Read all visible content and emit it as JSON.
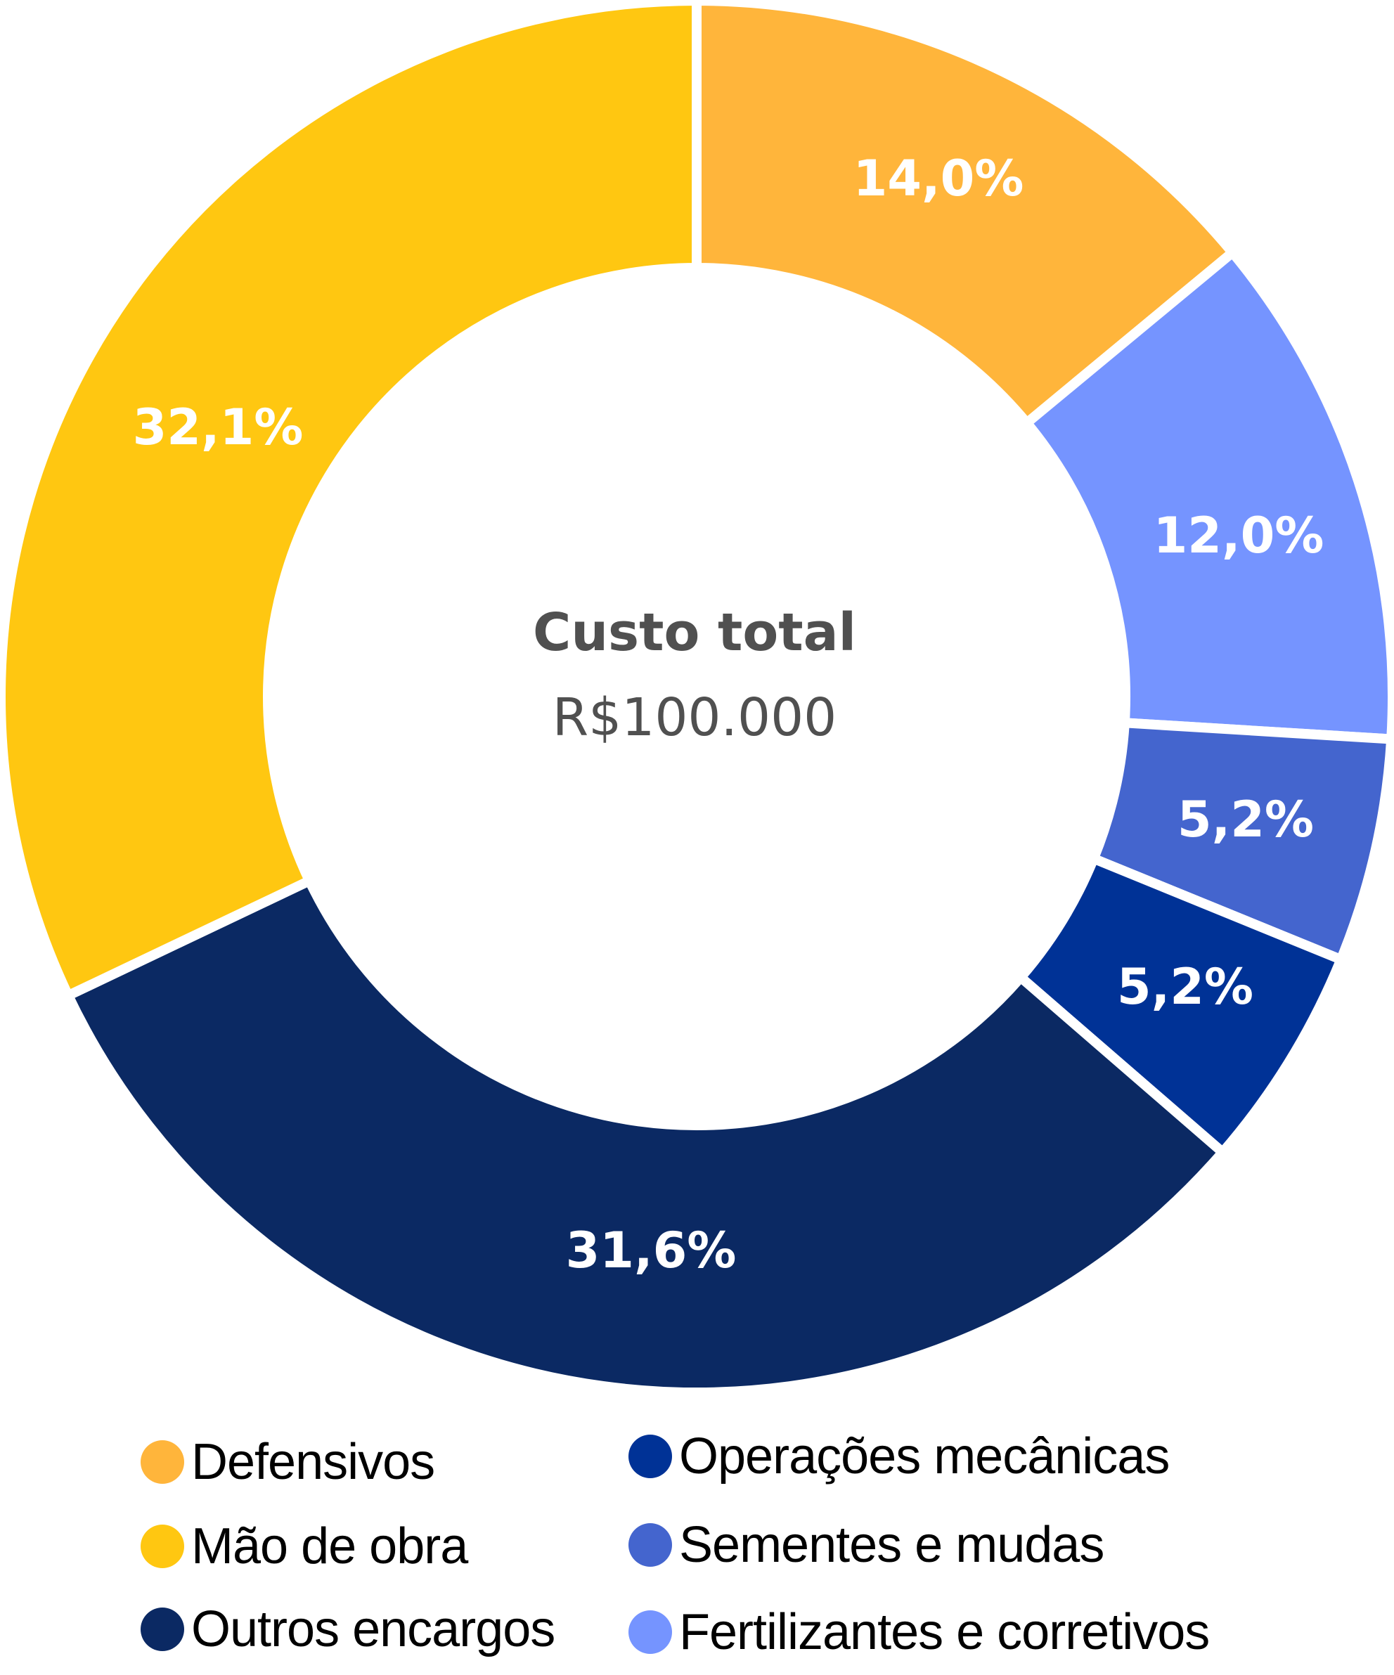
{
  "chart_data": {
    "type": "pie",
    "subtype": "donut",
    "title": "",
    "center_label": {
      "title": "Custo total",
      "value": "R$100.000"
    },
    "unit": "%",
    "categories": [
      "Defensivos",
      "Fertilizantes e corretivos",
      "Sementes e mudas",
      "Operações mecânicas",
      "Outros encargos",
      "Mão de obra"
    ],
    "values": [
      14.0,
      12.0,
      5.2,
      5.2,
      31.6,
      32.1
    ],
    "value_labels": [
      "14,0%",
      "12,0%",
      "5,2%",
      "5,2%",
      "31,6%",
      "32,1%"
    ],
    "colors": [
      "#FFB53B",
      "#7594FF",
      "#4465CE",
      "#003296",
      "#0B2963",
      "#FFC711"
    ],
    "start_angle_deg": 0,
    "direction": "clockwise",
    "legend_position": "bottom"
  },
  "center": {
    "title": "Custo total",
    "value": "R$100.000"
  },
  "slices": [
    {
      "label": "14,0%"
    },
    {
      "label": "12,0%"
    },
    {
      "label": "5,2%"
    },
    {
      "label": "5,2%"
    },
    {
      "label": "31,6%"
    },
    {
      "label": "32,1%"
    }
  ],
  "legend": {
    "items": [
      {
        "label": "Defensivos",
        "color": "#FFB53B"
      },
      {
        "label": "Mão de obra",
        "color": "#FFC711"
      },
      {
        "label": "Outros encargos",
        "color": "#0B2963"
      },
      {
        "label": "Operações mecânicas",
        "color": "#003296"
      },
      {
        "label": "Sementes e mudas",
        "color": "#4465CE"
      },
      {
        "label": "Fertilizantes e corretivos",
        "color": "#7594FF"
      }
    ]
  }
}
